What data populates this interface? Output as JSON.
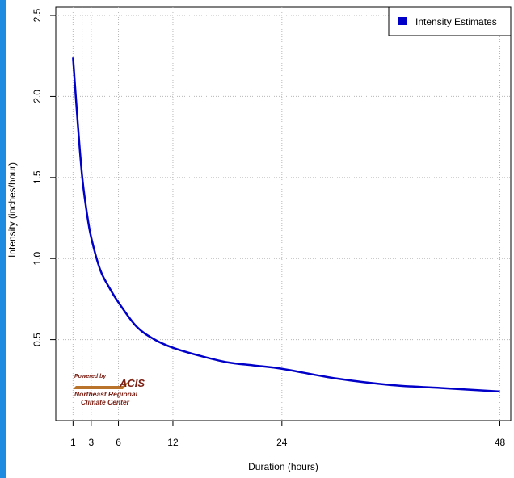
{
  "chart_data": {
    "type": "line",
    "title": "",
    "xlabel": "Duration (hours)",
    "ylabel": "Intensity (inches/hour)",
    "x_ticks": [
      1,
      3,
      6,
      12,
      24,
      48
    ],
    "x_grid": [
      1,
      2,
      3,
      6,
      12,
      24,
      48
    ],
    "y_ticks": [
      0.5,
      1.0,
      1.5,
      2.0,
      2.5
    ],
    "y_tick_labels": [
      "0.5",
      "1.0",
      "1.5",
      "2.0",
      "2.5"
    ],
    "xlim": [
      -0.9,
      49.2
    ],
    "ylim": [
      0.0,
      2.55
    ],
    "grid": true,
    "legend_position": "top-right",
    "series": [
      {
        "name": "Intensity Estimates",
        "color": "#0000c8",
        "x": [
          1,
          1.5,
          2,
          2.5,
          3,
          4,
          5,
          6,
          8,
          10,
          12,
          15,
          18,
          21,
          24,
          30,
          36,
          42,
          48
        ],
        "y": [
          2.24,
          1.85,
          1.51,
          1.29,
          1.13,
          0.93,
          0.82,
          0.73,
          0.58,
          0.5,
          0.45,
          0.4,
          0.36,
          0.34,
          0.32,
          0.26,
          0.22,
          0.2,
          0.18
        ]
      }
    ]
  },
  "logo": {
    "powered_by": "Powered by",
    "name": "ACIS",
    "line1": "Northeast Regional",
    "line2": "Climate Center"
  }
}
